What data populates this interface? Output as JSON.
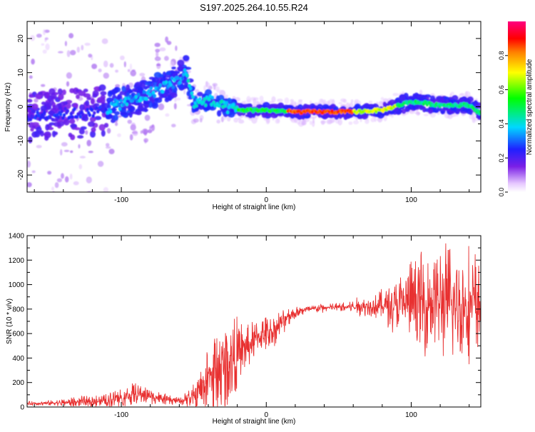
{
  "title": "S197.2025.264.10.55.R24",
  "colorbar": {
    "label": "Normalized spectral amplitude",
    "ticks": [
      0.0,
      0.2,
      0.4,
      0.6,
      0.8
    ],
    "tick_labels": [
      "0.0",
      "0.2",
      "0.4",
      "0.6",
      "0.8"
    ],
    "range": [
      0.0,
      1.0
    ]
  },
  "chart_data": [
    {
      "type": "heatmap",
      "name": "spectrogram",
      "xlabel": "Height of straight line (km)",
      "ylabel": "Frequency (Hz)",
      "xlim": [
        -165,
        148
      ],
      "ylim": [
        -25,
        25
      ],
      "xticks": [
        -100,
        0,
        100
      ],
      "xtick_labels": [
        "-100",
        "0",
        "100"
      ],
      "yticks": [
        -20,
        -10,
        0,
        10,
        20
      ],
      "ytick_labels": [
        "-20",
        "-10",
        "0",
        "10",
        "20"
      ],
      "ridge": {
        "x": [
          -165,
          -140,
          -120,
          -100,
          -85,
          -75,
          -60,
          -55,
          -50,
          -40,
          -30,
          -20,
          -10,
          0,
          20,
          40,
          60,
          80,
          100,
          120,
          140,
          148
        ],
        "y": [
          -3,
          -2,
          -2,
          1,
          3,
          5,
          8,
          10,
          1,
          2,
          0,
          -1,
          -1,
          -1,
          -1.5,
          -1.5,
          -1.5,
          -1,
          1.5,
          0.5,
          0.5,
          -2
        ]
      }
    },
    {
      "type": "line",
      "name": "snr",
      "xlabel": "Height of straight line (km)",
      "ylabel": "SNR (10 * v/v)",
      "xlim": [
        -165,
        148
      ],
      "ylim": [
        0,
        1400
      ],
      "xticks": [
        -100,
        0,
        100
      ],
      "xtick_labels": [
        "-100",
        "0",
        "100"
      ],
      "yticks": [
        0,
        200,
        400,
        600,
        800,
        1000,
        1200,
        1400
      ],
      "ytick_labels": [
        "0",
        "200",
        "400",
        "600",
        "800",
        "1000",
        "1200",
        "1400"
      ],
      "series": [
        {
          "name": "SNR",
          "color": "#e83030",
          "x": [
            -165,
            -150,
            -130,
            -110,
            -100,
            -90,
            -80,
            -70,
            -60,
            -55,
            -50,
            -45,
            -40,
            -35,
            -30,
            -25,
            -20,
            -15,
            -10,
            -5,
            0,
            5,
            10,
            15,
            20,
            25,
            30,
            40,
            50,
            60,
            70,
            80,
            90,
            100,
            110,
            120,
            130,
            140,
            148
          ],
          "y": [
            30,
            30,
            40,
            50,
            80,
            110,
            90,
            60,
            50,
            60,
            80,
            150,
            220,
            280,
            330,
            390,
            420,
            470,
            520,
            580,
            600,
            630,
            680,
            740,
            770,
            790,
            800,
            810,
            815,
            820,
            825,
            830,
            840,
            850,
            860,
            860,
            850,
            840,
            830
          ],
          "noise_amplitude": [
            10,
            15,
            30,
            40,
            60,
            60,
            50,
            30,
            20,
            40,
            80,
            150,
            200,
            250,
            280,
            250,
            200,
            160,
            120,
            110,
            100,
            90,
            80,
            60,
            40,
            30,
            25,
            25,
            25,
            40,
            60,
            90,
            150,
            250,
            300,
            330,
            350,
            330,
            300
          ]
        }
      ]
    }
  ]
}
